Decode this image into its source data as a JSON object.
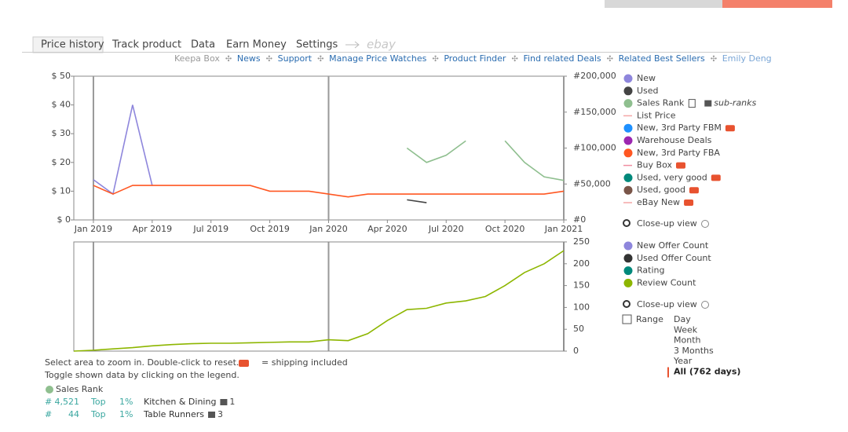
{
  "tabs": [
    "Price history",
    "Track product",
    "Data",
    "Earn Money",
    "Settings",
    "ebay"
  ],
  "links": [
    "Keepa Box",
    "News",
    "Support",
    "Manage Price Watches",
    "Product Finder",
    "Find related Deals",
    "Related Best Sellers",
    "Emily Deng"
  ],
  "chart_data": [
    {
      "type": "line",
      "x": [
        "2018-12",
        "2019-01",
        "2019-02",
        "2019-03",
        "2019-04",
        "2019-05",
        "2019-06",
        "2019-07",
        "2019-08",
        "2019-09",
        "2019-10",
        "2019-11",
        "2019-12",
        "2020-01",
        "2020-02",
        "2020-03",
        "2020-04",
        "2020-05",
        "2020-06",
        "2020-07",
        "2020-08",
        "2020-09",
        "2020-10",
        "2020-11",
        "2020-12",
        "2021-01"
      ],
      "xlim": [
        "2018-12",
        "2021-01"
      ],
      "xticks": [
        {
          "value": "2019-01",
          "label": "Jan 2019"
        },
        {
          "value": "2019-04",
          "label": "Apr 2019"
        },
        {
          "value": "2019-07",
          "label": "Jul 2019"
        },
        {
          "value": "2019-10",
          "label": "Oct 2019"
        },
        {
          "value": "2020-01",
          "label": "Jan 2020"
        },
        {
          "value": "2020-04",
          "label": "Apr 2020"
        },
        {
          "value": "2020-07",
          "label": "Jul 2020"
        },
        {
          "value": "2020-10",
          "label": "Oct 2020"
        },
        {
          "value": "2021-01",
          "label": "Jan 2021"
        }
      ],
      "ylim": [
        0,
        50
      ],
      "yticks": [
        {
          "value": 0,
          "label": "$ 0"
        },
        {
          "value": 10,
          "label": "$ 10"
        },
        {
          "value": 20,
          "label": "$ 20"
        },
        {
          "value": 30,
          "label": "$ 30"
        },
        {
          "value": 40,
          "label": "$ 40"
        },
        {
          "value": 50,
          "label": "$ 50"
        }
      ],
      "y2lim": [
        0,
        200000
      ],
      "y2ticks": [
        {
          "value": 0,
          "label": "#0"
        },
        {
          "value": 50000,
          "label": "#50,000"
        },
        {
          "value": 100000,
          "label": "#100,000"
        },
        {
          "value": 150000,
          "label": "#150,000"
        },
        {
          "value": 200000,
          "label": "#200,000"
        }
      ],
      "sub_ranks": "sub-ranks",
      "series": [
        {
          "name": "New",
          "color": "#8e86dc",
          "marker": "dot",
          "values": [
            null,
            14,
            9,
            40,
            12,
            null,
            null,
            null,
            null,
            null,
            null,
            null,
            null,
            null,
            null,
            null,
            null,
            null,
            null,
            null,
            null,
            null,
            null,
            null,
            null,
            null
          ]
        },
        {
          "name": "Used",
          "color": "#444444",
          "marker": "dot",
          "values": [
            null,
            null,
            null,
            null,
            null,
            null,
            null,
            null,
            null,
            null,
            null,
            null,
            null,
            null,
            null,
            null,
            null,
            7,
            6,
            null,
            null,
            null,
            null,
            null,
            null,
            null
          ]
        },
        {
          "name": "Sales Rank",
          "color": "#8fbf8f",
          "marker": "dot",
          "axis": "y2",
          "values": [
            null,
            null,
            null,
            null,
            null,
            null,
            null,
            null,
            null,
            null,
            null,
            null,
            null,
            null,
            null,
            null,
            null,
            100000,
            80000,
            90000,
            110000,
            null,
            110000,
            80000,
            60000,
            55000
          ]
        },
        {
          "name": "List Price",
          "color": "#f4a6a6",
          "marker": "line"
        },
        {
          "name": "New, 3rd Party FBM",
          "color": "#1e90ff",
          "marker": "dot"
        },
        {
          "name": "Warehouse Deals",
          "color": "#9c27b0",
          "marker": "dot"
        },
        {
          "name": "New, 3rd Party FBA",
          "color": "#ff5722",
          "marker": "dot",
          "values": [
            null,
            12,
            9,
            12,
            12,
            12,
            12,
            12,
            12,
            12,
            10,
            10,
            10,
            9,
            8,
            9,
            9,
            9,
            9,
            9,
            9,
            9,
            9,
            9,
            9,
            10
          ]
        },
        {
          "name": "Buy Box",
          "color": "#f08da0",
          "marker": "line"
        },
        {
          "name": "Used, very good",
          "color": "#00897b",
          "marker": "dot"
        },
        {
          "name": "Used, good",
          "color": "#795548",
          "marker": "dot"
        },
        {
          "name": "eBay New",
          "color": "#f4a6a6",
          "marker": "line"
        }
      ]
    },
    {
      "type": "line",
      "x": [
        "2018-12",
        "2019-01",
        "2019-02",
        "2019-03",
        "2019-04",
        "2019-05",
        "2019-06",
        "2019-07",
        "2019-08",
        "2019-09",
        "2019-10",
        "2019-11",
        "2019-12",
        "2020-01",
        "2020-02",
        "2020-03",
        "2020-04",
        "2020-05",
        "2020-06",
        "2020-07",
        "2020-08",
        "2020-09",
        "2020-10",
        "2020-11",
        "2020-12",
        "2021-01"
      ],
      "xlim": [
        "2018-12",
        "2021-01"
      ],
      "ylim": [
        0,
        250
      ],
      "yticks": [
        0,
        50,
        100,
        150,
        200,
        250
      ],
      "series": [
        {
          "name": "New Offer Count",
          "color": "#8e86dc",
          "marker": "dot"
        },
        {
          "name": "Used Offer Count",
          "color": "#333333",
          "marker": "dot"
        },
        {
          "name": "Rating",
          "color": "#00897b",
          "marker": "dot"
        },
        {
          "name": "Review Count",
          "color": "#8db600",
          "marker": "dot",
          "values": [
            0,
            2,
            5,
            8,
            12,
            15,
            17,
            18,
            18,
            19,
            20,
            21,
            21,
            26,
            24,
            40,
            70,
            95,
            98,
            110,
            115,
            125,
            150,
            180,
            200,
            230
          ]
        }
      ]
    }
  ],
  "close_up_view": "Close-up view",
  "range": {
    "label": "Range",
    "options": [
      "Day",
      "Week",
      "Month",
      "3 Months",
      "Year",
      "All (762 days)"
    ]
  },
  "footer": {
    "hint1": "Select area to zoom in. Double-click to reset.",
    "shipping": "= shipping included",
    "hint2": "Toggle shown data by clicking on the legend.",
    "rank_title": "Sales Rank",
    "rows": [
      [
        "#",
        "4,521",
        "Top",
        "1%",
        "Kitchen & Dining",
        "1"
      ],
      [
        "#",
        "44",
        "Top",
        "1%",
        "Table Runners",
        "3"
      ]
    ]
  }
}
